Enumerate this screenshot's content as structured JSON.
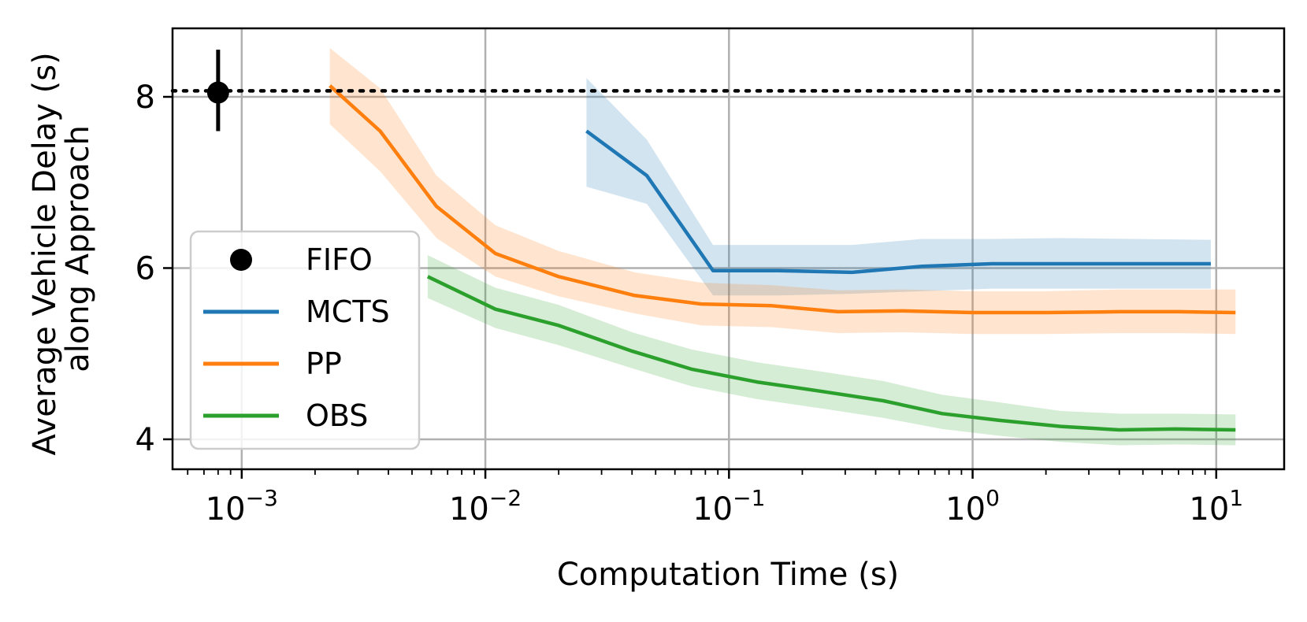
{
  "chart_data": {
    "type": "line",
    "xlabel": "Computation Time (s)",
    "ylabel_lines": [
      "Average Vehicle Delay (s)",
      "along Approach"
    ],
    "xscale": "log",
    "xlim": [
      0.00052,
      19
    ],
    "ylim": [
      3.65,
      8.8
    ],
    "x_ticks": [
      {
        "base": "10",
        "exp": "−3",
        "value": 0.001
      },
      {
        "base": "10",
        "exp": "−2",
        "value": 0.01
      },
      {
        "base": "10",
        "exp": "−1",
        "value": 0.1
      },
      {
        "base": "10",
        "exp": "0",
        "value": 1
      },
      {
        "base": "10",
        "exp": "1",
        "value": 10
      }
    ],
    "y_ticks": [
      {
        "label": "4",
        "value": 4
      },
      {
        "label": "6",
        "value": 6
      },
      {
        "label": "8",
        "value": 8
      }
    ],
    "grid": true,
    "legend": {
      "placement": "lower-left",
      "entries": [
        {
          "label": "FIFO",
          "marker": "dot",
          "color": "#000000"
        },
        {
          "label": "MCTS",
          "marker": "line",
          "color": "#1f77b4"
        },
        {
          "label": "PP",
          "marker": "line",
          "color": "#ff7f0e"
        },
        {
          "label": "OBS",
          "marker": "line",
          "color": "#2ca02c"
        }
      ]
    },
    "fifo": {
      "x": 0.0008,
      "y": 8.05,
      "yerr_low": 7.6,
      "yerr_high": 8.55,
      "color": "#000000",
      "reference_line_y": 8.07
    },
    "series": [
      {
        "name": "MCTS",
        "color": "#1f77b4",
        "x": [
          0.026,
          0.046,
          0.086,
          0.16,
          0.32,
          0.62,
          1.2,
          2.3,
          4.6,
          9.5
        ],
        "y": [
          7.6,
          7.08,
          5.97,
          5.97,
          5.95,
          6.02,
          6.05,
          6.05,
          6.05,
          6.05
        ],
        "lower": [
          6.95,
          6.75,
          5.68,
          5.68,
          5.7,
          5.73,
          5.76,
          5.76,
          5.76,
          5.76
        ],
        "upper": [
          8.22,
          7.5,
          6.27,
          6.27,
          6.27,
          6.34,
          6.34,
          6.35,
          6.34,
          6.33
        ]
      },
      {
        "name": "PP",
        "color": "#ff7f0e",
        "x": [
          0.0023,
          0.0037,
          0.0063,
          0.011,
          0.02,
          0.041,
          0.077,
          0.15,
          0.28,
          0.52,
          1.0,
          2.0,
          4.0,
          7.0,
          12.0
        ],
        "y": [
          8.13,
          7.6,
          6.72,
          6.17,
          5.9,
          5.68,
          5.58,
          5.56,
          5.49,
          5.5,
          5.48,
          5.48,
          5.49,
          5.49,
          5.48
        ],
        "lower": [
          7.68,
          7.13,
          6.35,
          5.9,
          5.67,
          5.47,
          5.33,
          5.31,
          5.24,
          5.25,
          5.23,
          5.23,
          5.24,
          5.24,
          5.23
        ],
        "upper": [
          8.57,
          8.1,
          7.08,
          6.5,
          6.2,
          5.95,
          5.83,
          5.8,
          5.74,
          5.75,
          5.73,
          5.73,
          5.75,
          5.75,
          5.75
        ]
      },
      {
        "name": "OBS",
        "color": "#2ca02c",
        "x": [
          0.0058,
          0.011,
          0.02,
          0.04,
          0.07,
          0.13,
          0.24,
          0.43,
          0.75,
          1.3,
          2.3,
          4.0,
          6.8,
          12.0
        ],
        "y": [
          5.9,
          5.52,
          5.33,
          5.03,
          4.82,
          4.67,
          4.56,
          4.45,
          4.3,
          4.22,
          4.15,
          4.11,
          4.12,
          4.11
        ],
        "lower": [
          5.65,
          5.3,
          5.1,
          4.83,
          4.62,
          4.47,
          4.36,
          4.25,
          4.12,
          4.04,
          3.97,
          3.93,
          3.94,
          3.93
        ],
        "upper": [
          6.15,
          5.77,
          5.57,
          5.25,
          5.05,
          4.9,
          4.79,
          4.68,
          4.52,
          4.43,
          4.33,
          4.3,
          4.3,
          4.29
        ]
      }
    ]
  }
}
